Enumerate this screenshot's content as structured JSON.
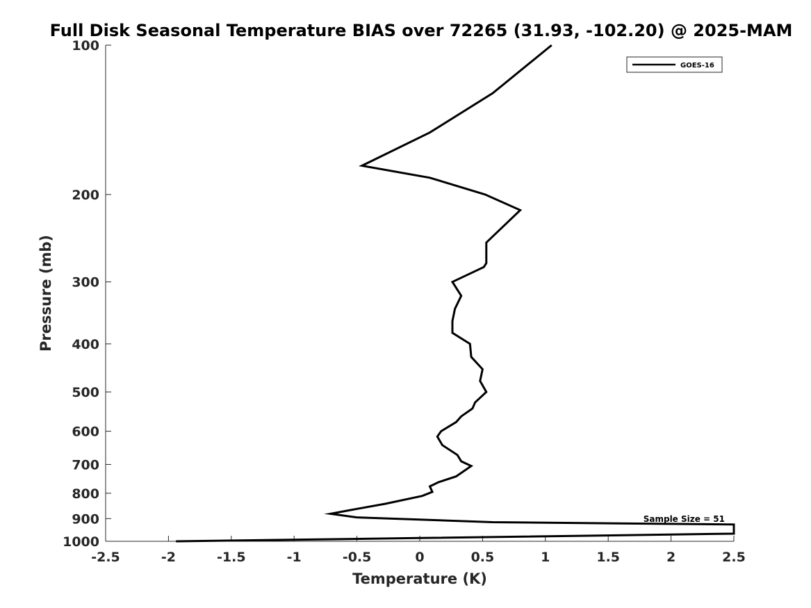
{
  "chart_data": {
    "type": "line",
    "title": "Full Disk Seasonal Temperature BIAS over 72265 (31.93, -102.20) @ 2025-MAM",
    "xlabel": "Temperature (K)",
    "ylabel": "Pressure (mb)",
    "xlim": [
      -2.5,
      2.5
    ],
    "ylim": [
      100,
      1000
    ],
    "y_scale": "log",
    "y_reversed": true,
    "x_ticks": [
      -2.5,
      -2,
      -1.5,
      -1,
      -0.5,
      0,
      0.5,
      1,
      1.5,
      2,
      2.5
    ],
    "x_tick_labels": [
      "-2.5",
      "-2",
      "-1.5",
      "-1",
      "-0.5",
      "0",
      "0.5",
      "1",
      "1.5",
      "2",
      "2.5"
    ],
    "y_ticks": [
      100,
      200,
      300,
      400,
      500,
      600,
      700,
      800,
      900,
      1000
    ],
    "y_tick_labels": [
      "100",
      "200",
      "300",
      "400",
      "500",
      "600",
      "700",
      "800",
      "900",
      "1000"
    ],
    "grid": false,
    "legend_position": "top-right",
    "series": [
      {
        "name": "GOES-16",
        "color": "#000000",
        "points": [
          {
            "x": 1.05,
            "p": 100
          },
          {
            "x": 0.58,
            "p": 125
          },
          {
            "x": 0.08,
            "p": 150
          },
          {
            "x": -0.46,
            "p": 175
          },
          {
            "x": 0.08,
            "p": 185
          },
          {
            "x": 0.52,
            "p": 200
          },
          {
            "x": 0.8,
            "p": 215
          },
          {
            "x": 0.53,
            "p": 250
          },
          {
            "x": 0.53,
            "p": 275
          },
          {
            "x": 0.51,
            "p": 280
          },
          {
            "x": 0.26,
            "p": 300
          },
          {
            "x": 0.33,
            "p": 320
          },
          {
            "x": 0.28,
            "p": 340
          },
          {
            "x": 0.26,
            "p": 360
          },
          {
            "x": 0.26,
            "p": 380
          },
          {
            "x": 0.4,
            "p": 400
          },
          {
            "x": 0.41,
            "p": 425
          },
          {
            "x": 0.5,
            "p": 450
          },
          {
            "x": 0.48,
            "p": 475
          },
          {
            "x": 0.53,
            "p": 500
          },
          {
            "x": 0.44,
            "p": 525
          },
          {
            "x": 0.42,
            "p": 540
          },
          {
            "x": 0.33,
            "p": 560
          },
          {
            "x": 0.29,
            "p": 575
          },
          {
            "x": 0.17,
            "p": 600
          },
          {
            "x": 0.14,
            "p": 615
          },
          {
            "x": 0.18,
            "p": 640
          },
          {
            "x": 0.3,
            "p": 670
          },
          {
            "x": 0.33,
            "p": 690
          },
          {
            "x": 0.41,
            "p": 705
          },
          {
            "x": 0.29,
            "p": 740
          },
          {
            "x": 0.15,
            "p": 760
          },
          {
            "x": 0.08,
            "p": 775
          },
          {
            "x": 0.1,
            "p": 795
          },
          {
            "x": 0.02,
            "p": 810
          },
          {
            "x": -0.27,
            "p": 840
          },
          {
            "x": -0.55,
            "p": 865
          },
          {
            "x": -0.71,
            "p": 880
          },
          {
            "x": -0.5,
            "p": 895
          },
          {
            "x": 0.58,
            "p": 915
          },
          {
            "x": 2.5,
            "p": 925
          },
          {
            "x": 2.5,
            "p": 965
          },
          {
            "x": 0.0,
            "p": 985
          },
          {
            "x": -1.94,
            "p": 1000
          }
        ]
      }
    ],
    "annotations": [
      {
        "text": "Sample Size = 51"
      }
    ]
  }
}
